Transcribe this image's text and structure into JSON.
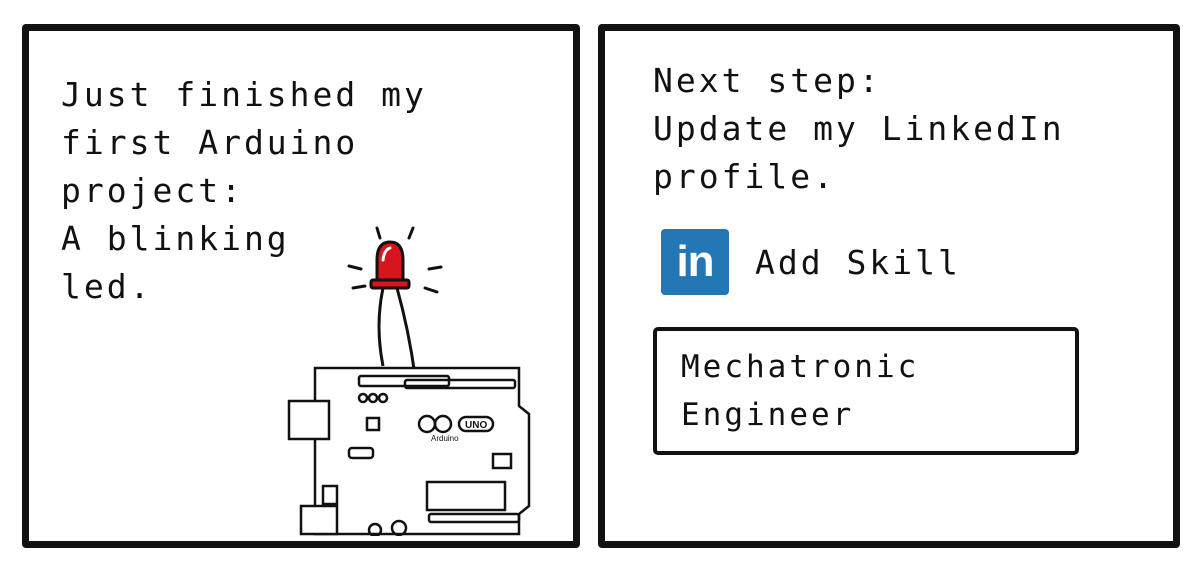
{
  "left_panel": {
    "caption_lines": [
      "Just finished my",
      "first Arduino",
      "project:",
      "A blinking",
      "led."
    ],
    "board_labels": {
      "logo": "Arduino",
      "model": "UNO"
    }
  },
  "right_panel": {
    "caption_lines": [
      "Next step:",
      "Update my LinkedIn",
      "profile."
    ],
    "linkedin_logo_text": "in",
    "add_skill_label": "Add Skill",
    "skill_field_lines": [
      "Mechatronic",
      "Engineer"
    ]
  },
  "colors": {
    "led_red": "#d6151c",
    "linkedin_blue": "#2377b5",
    "ink": "#111111"
  }
}
